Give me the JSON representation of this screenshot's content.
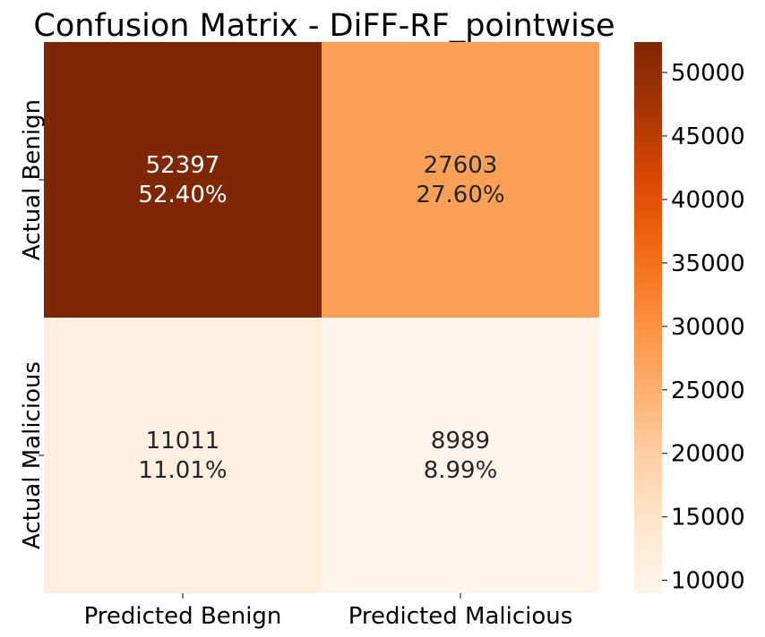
{
  "chart_data": {
    "type": "heatmap",
    "title": "Confusion Matrix - DiFF-RF_pointwise",
    "row_labels": [
      "Actual Benign",
      "Actual Malicious"
    ],
    "col_labels": [
      "Predicted Benign",
      "Predicted Malicious"
    ],
    "values": [
      [
        52397,
        27603
      ],
      [
        11011,
        8989
      ]
    ],
    "percent_labels": [
      [
        "52.40%",
        "27.60%"
      ],
      [
        "11.01%",
        "8.99%"
      ]
    ],
    "colorbar": {
      "min": 8989,
      "max": 52397,
      "ticks": [
        10000,
        15000,
        20000,
        25000,
        30000,
        35000,
        40000,
        45000,
        50000
      ],
      "colormap": "Oranges"
    }
  }
}
